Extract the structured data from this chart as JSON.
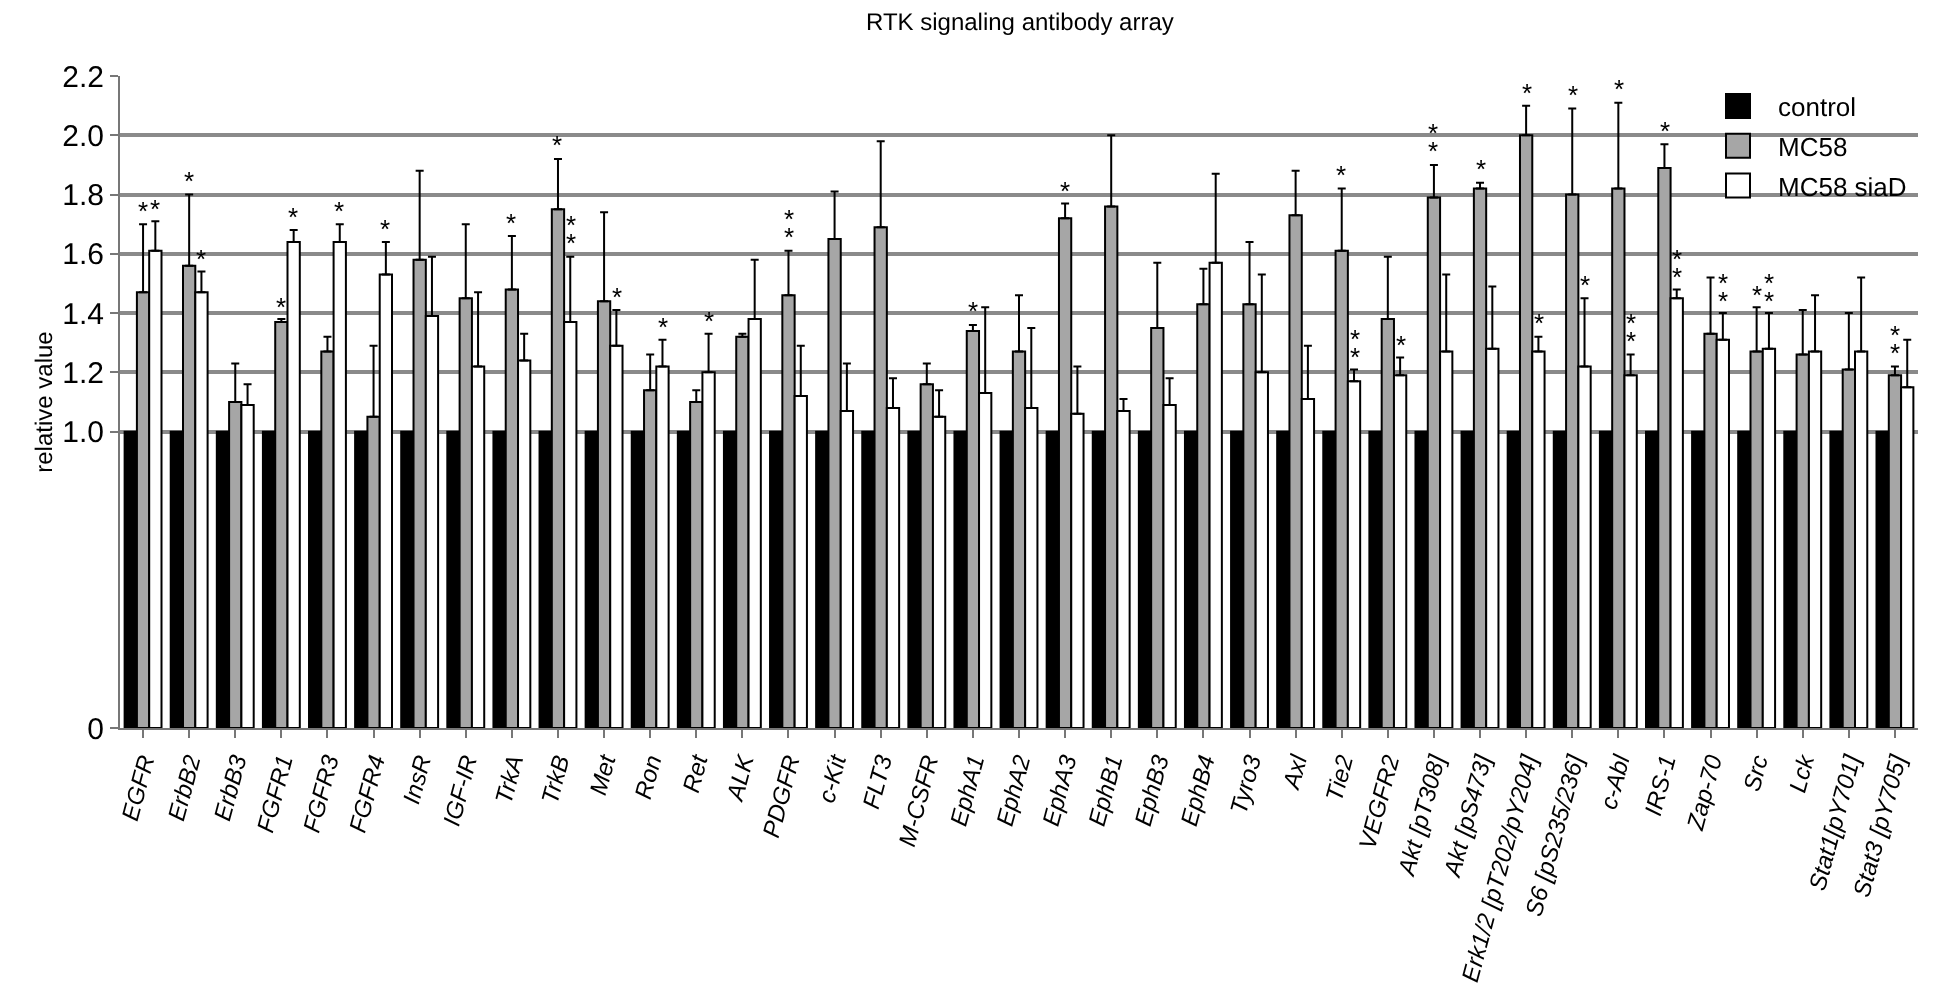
{
  "chart_data": {
    "type": "bar",
    "title": "RTK signaling antibody array",
    "ylabel": "relative value",
    "categories": [
      "EGFR",
      "ErbB2",
      "ErbB3",
      "FGFR1",
      "FGFR3",
      "FGFR4",
      "InsR",
      "IGF-IR",
      "TrkA",
      "TrkB",
      "Met",
      "Ron",
      "Ret",
      "ALK",
      "PDGFR",
      "c-Kit",
      "FLT3",
      "M-CSFR",
      "EphA1",
      "EphA2",
      "EphA3",
      "EphB1",
      "EphB3",
      "EphB4",
      "Tyro3",
      "Axl",
      "Tie2",
      "VEGFR2",
      "Akt [pT308]",
      "Akt [pS473]",
      "Erk1/2 [pT202/pY204]",
      "S6 [pS235/236]",
      "c-Abl",
      "IRS-1",
      "Zap-70",
      "Src",
      "Lck",
      "Stat1[pY701]",
      "Stat3 [pY705]"
    ],
    "series": [
      {
        "name": "control",
        "color": "#000000",
        "values": [
          1,
          1,
          1,
          1,
          1,
          1,
          1,
          1,
          1,
          1,
          1,
          1,
          1,
          1,
          1,
          1,
          1,
          1,
          1,
          1,
          1,
          1,
          1,
          1,
          1,
          1,
          1,
          1,
          1,
          1,
          1,
          1,
          1,
          1,
          1,
          1,
          1,
          1,
          1
        ]
      },
      {
        "name": "MC58",
        "color": "#a6a6a6",
        "values": [
          1.47,
          1.56,
          1.1,
          1.37,
          1.27,
          1.05,
          1.58,
          1.45,
          1.48,
          1.75,
          1.44,
          1.14,
          1.1,
          1.32,
          1.46,
          1.65,
          1.69,
          1.16,
          1.34,
          1.27,
          1.72,
          1.76,
          1.35,
          1.43,
          1.43,
          1.73,
          1.61,
          1.38,
          1.79,
          1.82,
          2.0,
          1.8,
          1.82,
          1.89,
          1.33,
          1.27,
          1.26,
          1.21,
          1.19
        ],
        "errors": [
          [
            1.47,
            1.7
          ],
          [
            1.56,
            1.8
          ],
          [
            1.1,
            1.23
          ],
          [
            1.37,
            1.38
          ],
          [
            1.27,
            1.32
          ],
          [
            1.05,
            1.29
          ],
          [
            1.58,
            1.88
          ],
          [
            1.45,
            1.7
          ],
          [
            1.48,
            1.66
          ],
          [
            1.75,
            1.92
          ],
          [
            1.44,
            1.74
          ],
          [
            1.14,
            1.26
          ],
          [
            1.1,
            1.14
          ],
          [
            1.32,
            1.33
          ],
          [
            1.46,
            1.61
          ],
          [
            1.65,
            1.81
          ],
          [
            1.69,
            1.98
          ],
          [
            1.16,
            1.23
          ],
          [
            1.34,
            1.36
          ],
          [
            1.27,
            1.46
          ],
          [
            1.72,
            1.77
          ],
          [
            1.76,
            2.0
          ],
          [
            1.35,
            1.57
          ],
          [
            1.43,
            1.55
          ],
          [
            1.43,
            1.64
          ],
          [
            1.73,
            1.88
          ],
          [
            1.61,
            1.82
          ],
          [
            1.38,
            1.59
          ],
          [
            1.79,
            1.9
          ],
          [
            1.82,
            1.84
          ],
          [
            2.0,
            2.1
          ],
          [
            1.8,
            2.09
          ],
          [
            1.82,
            2.11
          ],
          [
            1.89,
            1.97
          ],
          [
            1.33,
            1.52
          ],
          [
            1.27,
            1.42
          ],
          [
            1.26,
            1.41
          ],
          [
            1.21,
            1.4
          ],
          [
            1.19,
            1.22
          ]
        ]
      },
      {
        "name": "MC58 siaD",
        "color": "#ffffff",
        "values": [
          1.61,
          1.47,
          1.09,
          1.64,
          1.64,
          1.53,
          1.39,
          1.22,
          1.24,
          1.37,
          1.29,
          1.22,
          1.2,
          1.38,
          1.12,
          1.07,
          1.08,
          1.05,
          1.13,
          1.08,
          1.06,
          1.07,
          1.09,
          1.57,
          1.2,
          1.11,
          1.17,
          1.19,
          1.27,
          1.28,
          1.27,
          1.22,
          1.19,
          1.45,
          1.31,
          1.28,
          1.27,
          1.27,
          1.15
        ],
        "errors": [
          [
            1.61,
            1.71
          ],
          [
            1.47,
            1.54
          ],
          [
            1.09,
            1.16
          ],
          [
            1.64,
            1.68
          ],
          [
            1.64,
            1.7
          ],
          [
            1.53,
            1.64
          ],
          [
            1.39,
            1.59
          ],
          [
            1.22,
            1.47
          ],
          [
            1.24,
            1.33
          ],
          [
            1.37,
            1.59
          ],
          [
            1.29,
            1.41
          ],
          [
            1.22,
            1.31
          ],
          [
            1.2,
            1.33
          ],
          [
            1.38,
            1.58
          ],
          [
            1.12,
            1.29
          ],
          [
            1.07,
            1.23
          ],
          [
            1.08,
            1.18
          ],
          [
            1.05,
            1.14
          ],
          [
            1.13,
            1.42
          ],
          [
            1.08,
            1.35
          ],
          [
            1.06,
            1.22
          ],
          [
            1.07,
            1.11
          ],
          [
            1.09,
            1.18
          ],
          [
            1.57,
            1.87
          ],
          [
            1.2,
            1.53
          ],
          [
            1.11,
            1.29
          ],
          [
            1.17,
            1.21
          ],
          [
            1.19,
            1.25
          ],
          [
            1.27,
            1.53
          ],
          [
            1.28,
            1.49
          ],
          [
            1.27,
            1.32
          ],
          [
            1.22,
            1.45
          ],
          [
            1.19,
            1.26
          ],
          [
            1.45,
            1.48
          ],
          [
            1.31,
            1.4
          ],
          [
            1.28,
            1.4
          ],
          [
            1.27,
            1.46
          ],
          [
            1.27,
            1.52
          ],
          [
            1.15,
            1.31
          ]
        ]
      }
    ],
    "ylim": [
      0,
      2.2
    ],
    "yticks": [
      0,
      {
        "value": 1,
        "label": "1.0"
      },
      1.2,
      1.4,
      1.6,
      1.8,
      {
        "value": 2,
        "label": "2.0"
      },
      2.2
    ],
    "grid": "y",
    "legend": "top right",
    "annotations": [
      {
        "text": "*",
        "x": "EGFR",
        "y": 1.7
      },
      {
        "text": "*",
        "x": "EGFR",
        "y": 1.71
      },
      {
        "text": "*",
        "x": "ErbB2",
        "y": 1.8
      },
      {
        "text": "*",
        "x": "ErbB2",
        "y": 1.54
      },
      {
        "text": "*",
        "x": "FGFR1",
        "y": 1.38
      },
      {
        "text": "*",
        "x": "FGFR1",
        "y": 1.68
      },
      {
        "text": "*",
        "x": "FGFR3",
        "y": 1.7
      },
      {
        "text": "*",
        "x": "FGFR4",
        "y": 1.64
      },
      {
        "text": "*",
        "x": "TrkA",
        "y": 1.66
      },
      {
        "text": "*",
        "x": "TrkB",
        "y": 1.92
      },
      {
        "text": "*",
        "x": "TrkB",
        "y": 1.59
      },
      {
        "text": "*",
        "x": "TrkB",
        "y": 1.59
      },
      {
        "text": "*",
        "x": "Met",
        "y": 1.41
      },
      {
        "text": "*",
        "x": "Ron",
        "y": 1.31
      },
      {
        "text": "*",
        "x": "Ret",
        "y": 1.33
      },
      {
        "text": "*",
        "x": "PDGFR",
        "y": 1.61
      },
      {
        "text": "*",
        "x": "PDGFR",
        "y": 1.61
      },
      {
        "text": "*",
        "x": "EphA1",
        "y": 1.36
      },
      {
        "text": "*",
        "x": "EphA3",
        "y": 1.77
      },
      {
        "text": "*",
        "x": "Tie2",
        "y": 1.82
      },
      {
        "text": "*",
        "x": "Tie2",
        "y": 1.21
      },
      {
        "text": "*",
        "x": "Tie2",
        "y": 1.21
      },
      {
        "text": "*",
        "x": "VEGFR2",
        "y": 1.25
      },
      {
        "text": "*",
        "x": "Akt [pT308]",
        "y": 1.9
      },
      {
        "text": "*",
        "x": "Akt [pT308]",
        "y": 1.9
      },
      {
        "text": "*",
        "x": "Akt [pS473]",
        "y": 1.84
      },
      {
        "text": "*",
        "x": "Erk1/2 [pT202/pY204]",
        "y": 2.1
      },
      {
        "text": "*",
        "x": "Erk1/2 [pT202/pY204]",
        "y": 1.32
      },
      {
        "text": "*",
        "x": "S6 [pS235/236]",
        "y": 2.09
      },
      {
        "text": "*",
        "x": "S6 [pS235/236]",
        "y": 1.45
      },
      {
        "text": "*",
        "x": "c-Abl",
        "y": 2.11
      },
      {
        "text": "*",
        "x": "c-Abl",
        "y": 1.26
      },
      {
        "text": "*",
        "x": "c-Abl",
        "y": 1.26
      },
      {
        "text": "*",
        "x": "IRS-1",
        "y": 1.97
      },
      {
        "text": "*",
        "x": "IRS-1",
        "y": 1.48
      },
      {
        "text": "*",
        "x": "IRS-1",
        "y": 1.48
      },
      {
        "text": "*",
        "x": "Zap-70",
        "y": 1.4
      },
      {
        "text": "*",
        "x": "Zap-70",
        "y": 1.4
      },
      {
        "text": "*",
        "x": "Src",
        "y": 1.42
      },
      {
        "text": "*",
        "x": "Src",
        "y": 1.4
      },
      {
        "text": "*",
        "x": "Src",
        "y": 1.4
      },
      {
        "text": "*",
        "x": "Stat3 [pY705]",
        "y": 1.22
      },
      {
        "text": "*",
        "x": "Stat3 [pY705]",
        "y": 1.22
      }
    ]
  }
}
